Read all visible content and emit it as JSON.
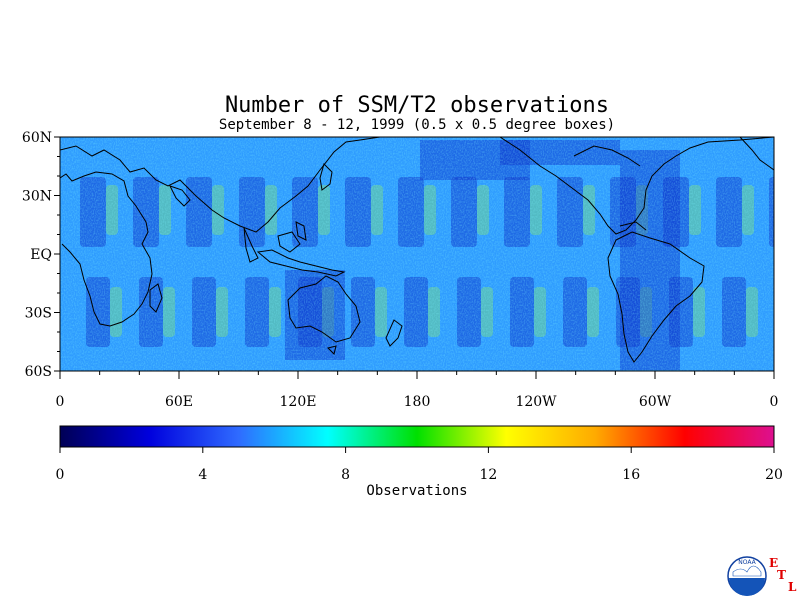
{
  "title": "Number of SSM/T2 observations",
  "subtitle": "September 8 - 12, 1999 (0.5 x 0.5 degree boxes)",
  "map": {
    "lon_range": [
      0,
      360
    ],
    "lat_range": [
      -60,
      60
    ],
    "lat_ticks": [
      {
        "lat": 60,
        "label": "60N"
      },
      {
        "lat": 30,
        "label": "30N"
      },
      {
        "lat": 0,
        "label": "EQ"
      },
      {
        "lat": -30,
        "label": "30S"
      },
      {
        "lat": -60,
        "label": "60S"
      }
    ],
    "lon_ticks": [
      {
        "lon": 0,
        "label": "0"
      },
      {
        "lon": 60,
        "label": "60E"
      },
      {
        "lon": 120,
        "label": "120E"
      },
      {
        "lon": 180,
        "label": "180"
      },
      {
        "lon": 240,
        "label": "120W"
      },
      {
        "lon": 300,
        "label": "60W"
      },
      {
        "lon": 360,
        "label": "0"
      }
    ]
  },
  "colorbar": {
    "min": 0,
    "max": 20,
    "label": "Observations",
    "ticks": [
      {
        "value": 0,
        "label": "0"
      },
      {
        "value": 4,
        "label": "4"
      },
      {
        "value": 8,
        "label": "8"
      },
      {
        "value": 12,
        "label": "12"
      },
      {
        "value": 16,
        "label": "16"
      },
      {
        "value": 20,
        "label": "20"
      }
    ],
    "colors": [
      "#000055",
      "#0000dd",
      "#2f6bff",
      "#00ffff",
      "#00e000",
      "#ffff00",
      "#ffaa00",
      "#ff0000",
      "#dd1090"
    ]
  },
  "logo": {
    "noaa_text": "NOAA",
    "etl_letters": [
      "E",
      "T",
      "L"
    ]
  }
}
